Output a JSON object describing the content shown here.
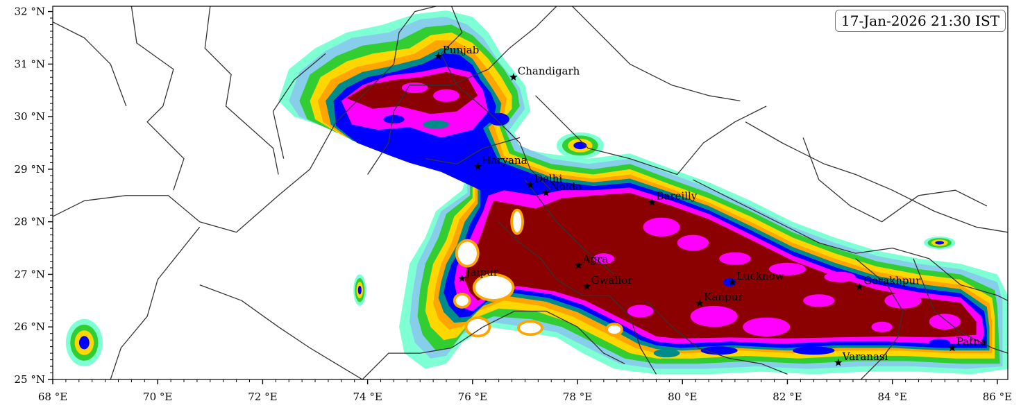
{
  "timestamp": "17-Jan-2026 21:30 IST",
  "lon_ticks": [
    {
      "value": 68,
      "label": "68 °E"
    },
    {
      "value": 70,
      "label": "70 °E"
    },
    {
      "value": 72,
      "label": "72 °E"
    },
    {
      "value": 74,
      "label": "74 °E"
    },
    {
      "value": 76,
      "label": "76 °E"
    },
    {
      "value": 78,
      "label": "78 °E"
    },
    {
      "value": 80,
      "label": "80 °E"
    },
    {
      "value": 82,
      "label": "82 °E"
    },
    {
      "value": 84,
      "label": "84 °E"
    },
    {
      "value": 86,
      "label": "86 °E"
    }
  ],
  "lat_ticks": [
    {
      "value": 25,
      "label": "25 °N"
    },
    {
      "value": 26,
      "label": "26 °N"
    },
    {
      "value": 27,
      "label": "27 °N"
    },
    {
      "value": 28,
      "label": "28 °N"
    },
    {
      "value": 29,
      "label": "29 °N"
    },
    {
      "value": 30,
      "label": "30 °N"
    },
    {
      "value": 31,
      "label": "31 °N"
    },
    {
      "value": 32,
      "label": "32 °N"
    }
  ],
  "extent": {
    "lon_min": 68,
    "lon_max": 86.2,
    "lat_min": 25,
    "lat_max": 32.1
  },
  "cities": [
    {
      "name": "Punjab",
      "lon": 75.35,
      "lat": 31.15
    },
    {
      "name": "Chandigarh",
      "lon": 76.78,
      "lat": 30.75
    },
    {
      "name": "Haryana",
      "lon": 76.1,
      "lat": 29.05
    },
    {
      "name": "Delhi",
      "lon": 77.1,
      "lat": 28.7
    },
    {
      "name": "Noida",
      "lon": 77.4,
      "lat": 28.55
    },
    {
      "name": "Bareilly",
      "lon": 79.42,
      "lat": 28.37
    },
    {
      "name": "Agra",
      "lon": 78.02,
      "lat": 27.17
    },
    {
      "name": "Jaipur",
      "lon": 75.8,
      "lat": 26.92
    },
    {
      "name": "Gwalior",
      "lon": 78.18,
      "lat": 26.77
    },
    {
      "name": "Lucknow",
      "lon": 80.95,
      "lat": 26.85
    },
    {
      "name": "Kanpur",
      "lon": 80.33,
      "lat": 26.45
    },
    {
      "name": "Gorakhpur",
      "lon": 83.37,
      "lat": 26.76
    },
    {
      "name": "Varanasi",
      "lon": 82.97,
      "lat": 25.32
    },
    {
      "name": "Patna",
      "lon": 85.14,
      "lat": 25.6
    }
  ],
  "colors": {
    "level1": "#7fffd4",
    "level2": "#87ceeb",
    "level3": "#32cd32",
    "level4": "#ffd700",
    "level5": "#ffa500",
    "level6": "#008b8b",
    "level7": "#0000ff",
    "level8": "#ff00ff",
    "level9": "#8b0000",
    "border": "#333333"
  }
}
